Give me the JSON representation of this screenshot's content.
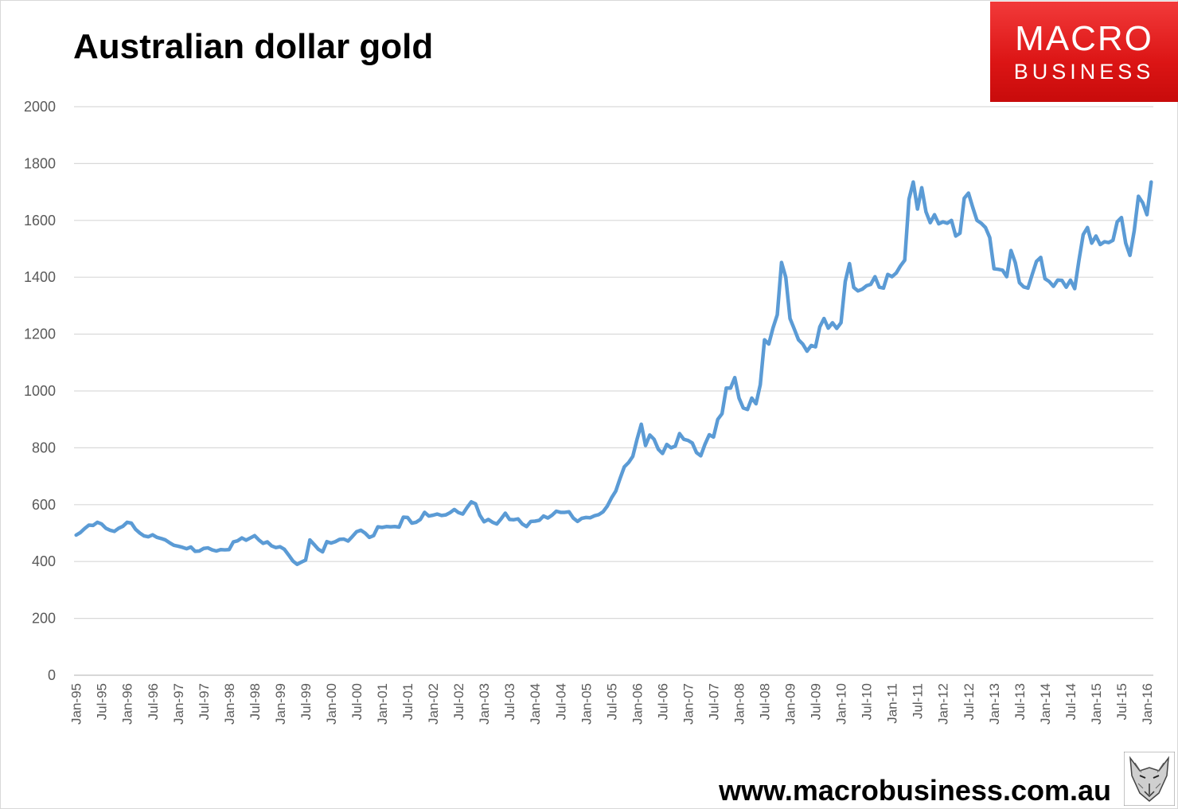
{
  "title": "Australian dollar gold",
  "logo": {
    "line1": "MACRO",
    "line2": "BUSINESS",
    "bg_color": "#e31b1b"
  },
  "footer": {
    "url": "www.macrobusiness.com.au"
  },
  "chart_data": {
    "type": "line",
    "title": "Australian dollar gold",
    "xlabel": "",
    "ylabel": "",
    "ylim": [
      0,
      2000
    ],
    "y_ticks": [
      0,
      200,
      400,
      600,
      800,
      1000,
      1200,
      1400,
      1600,
      1800,
      2000
    ],
    "x_tick_labels": [
      "Jan-95",
      "Jul-95",
      "Jan-96",
      "Jul-96",
      "Jan-97",
      "Jul-97",
      "Jan-98",
      "Jul-98",
      "Jan-99",
      "Jul-99",
      "Jan-00",
      "Jul-00",
      "Jan-01",
      "Jul-01",
      "Jan-02",
      "Jul-02",
      "Jan-03",
      "Jul-03",
      "Jan-04",
      "Jul-04",
      "Jan-05",
      "Jul-05",
      "Jan-06",
      "Jul-06",
      "Jan-07",
      "Jul-07",
      "Jan-08",
      "Jul-08",
      "Jan-09",
      "Jul-09",
      "Jan-10",
      "Jul-10",
      "Jan-11",
      "Jul-11",
      "Jan-12",
      "Jul-12",
      "Jan-13",
      "Jul-13",
      "Jan-14",
      "Jul-14",
      "Jan-15",
      "Jul-15",
      "Jan-16"
    ],
    "grid": true,
    "line_color": "#5b9bd5",
    "start_month": "Jan-95",
    "values": [
      493,
      502,
      516,
      528,
      527,
      538,
      532,
      517,
      510,
      506,
      517,
      524,
      538,
      535,
      513,
      500,
      490,
      487,
      494,
      485,
      481,
      476,
      466,
      457,
      454,
      450,
      445,
      451,
      436,
      437,
      446,
      448,
      441,
      437,
      442,
      441,
      442,
      469,
      473,
      483,
      475,
      483,
      491,
      476,
      464,
      469,
      455,
      449,
      452,
      443,
      423,
      402,
      390,
      398,
      405,
      476,
      460,
      443,
      434,
      470,
      465,
      470,
      478,
      479,
      472,
      488,
      505,
      510,
      500,
      485,
      491,
      522,
      520,
      523,
      522,
      523,
      521,
      556,
      555,
      535,
      538,
      548,
      573,
      560,
      563,
      567,
      562,
      564,
      572,
      583,
      572,
      567,
      590,
      610,
      603,
      563,
      540,
      548,
      538,
      532,
      550,
      570,
      548,
      547,
      550,
      532,
      523,
      541,
      542,
      545,
      560,
      553,
      563,
      577,
      573,
      573,
      575,
      553,
      541,
      552,
      555,
      554,
      561,
      565,
      575,
      595,
      624,
      648,
      692,
      733,
      748,
      770,
      830,
      883,
      808,
      845,
      830,
      795,
      780,
      812,
      800,
      806,
      850,
      830,
      826,
      817,
      783,
      772,
      813,
      846,
      838,
      900,
      920,
      1010,
      1010,
      1047,
      975,
      940,
      935,
      975,
      955,
      1022,
      1180,
      1165,
      1222,
      1268,
      1452,
      1400,
      1255,
      1218,
      1180,
      1165,
      1140,
      1160,
      1155,
      1225,
      1255,
      1221,
      1240,
      1220,
      1240,
      1385,
      1448,
      1364,
      1352,
      1358,
      1370,
      1375,
      1402,
      1365,
      1362,
      1410,
      1402,
      1415,
      1440,
      1460,
      1675,
      1735,
      1640,
      1715,
      1630,
      1592,
      1620,
      1588,
      1595,
      1590,
      1600,
      1545,
      1555,
      1678,
      1696,
      1646,
      1600,
      1590,
      1575,
      1540,
      1430,
      1428,
      1425,
      1402,
      1494,
      1452,
      1381,
      1366,
      1362,
      1410,
      1456,
      1470,
      1395,
      1385,
      1368,
      1390,
      1389,
      1365,
      1390,
      1360,
      1460,
      1550,
      1575,
      1520,
      1545,
      1515,
      1525,
      1522,
      1530,
      1595,
      1610,
      1520,
      1477,
      1563,
      1685,
      1662,
      1620,
      1735
    ]
  }
}
